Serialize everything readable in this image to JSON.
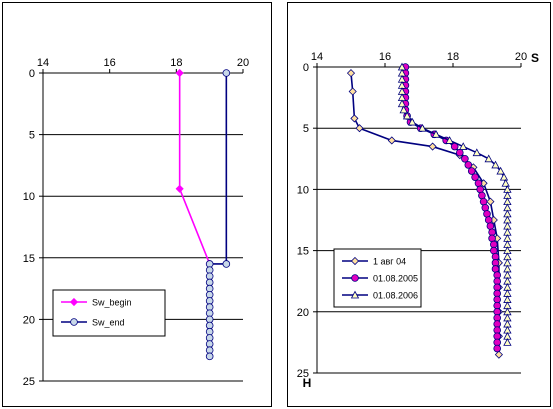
{
  "chart_data": [
    {
      "type": "line",
      "title": "",
      "xlabel": "",
      "ylabel": "",
      "xlim": [
        14,
        20
      ],
      "ylim": [
        0,
        25
      ],
      "y_inverted": true,
      "x_axis_position": "top",
      "x_ticks": [
        14,
        16,
        18,
        20
      ],
      "y_ticks": [
        0,
        5,
        10,
        15,
        20,
        25
      ],
      "grid": "horizontal",
      "legend_position": "bottom-left",
      "series": [
        {
          "name": "Sw_begin",
          "color": "#ff00ff",
          "marker": "diamond",
          "marker_fill": "#ff00ff",
          "points": [
            [
              18.1,
              0
            ],
            [
              18.1,
              9.4
            ],
            [
              19.0,
              15.5
            ]
          ]
        },
        {
          "name": "Sw_end",
          "color": "#000080",
          "marker": "circle",
          "marker_fill": "#c8d8e8",
          "points": [
            [
              19.5,
              0
            ],
            [
              19.5,
              15.5
            ],
            [
              19.0,
              15.5
            ],
            [
              19.0,
              16.0
            ],
            [
              19.0,
              16.5
            ],
            [
              19.0,
              17.0
            ],
            [
              19.0,
              17.5
            ],
            [
              19.0,
              18.0
            ],
            [
              19.0,
              18.5
            ],
            [
              19.0,
              19.0
            ],
            [
              19.0,
              19.5
            ],
            [
              19.0,
              20.0
            ],
            [
              19.0,
              20.5
            ],
            [
              19.0,
              21.0
            ],
            [
              19.0,
              21.5
            ],
            [
              19.0,
              22.0
            ],
            [
              19.0,
              22.5
            ],
            [
              19.0,
              23.0
            ]
          ]
        }
      ]
    },
    {
      "type": "line",
      "title": "",
      "xlabel": "S",
      "ylabel": "H",
      "xlim": [
        14,
        20
      ],
      "ylim": [
        0,
        25
      ],
      "y_inverted": true,
      "x_axis_position": "top",
      "x_ticks": [
        14,
        16,
        18,
        20
      ],
      "y_ticks": [
        0,
        5,
        10,
        15,
        20,
        25
      ],
      "grid": "horizontal",
      "legend_position": "bottom-left",
      "series": [
        {
          "name": "1 авг 04",
          "color": "#000080",
          "marker": "diamond",
          "marker_fill": "#ffe0a0",
          "points": [
            [
              15.0,
              0.5
            ],
            [
              15.05,
              2.0
            ],
            [
              15.1,
              4.2
            ],
            [
              15.25,
              5.0
            ],
            [
              16.2,
              6.0
            ],
            [
              17.4,
              6.5
            ],
            [
              18.2,
              7.2
            ],
            [
              18.6,
              8.2
            ],
            [
              18.9,
              9.5
            ],
            [
              19.1,
              11.0
            ],
            [
              19.2,
              12.5
            ],
            [
              19.3,
              14.0
            ],
            [
              19.35,
              16.0
            ],
            [
              19.35,
              18.0
            ],
            [
              19.35,
              20.0
            ],
            [
              19.35,
              22.0
            ],
            [
              19.35,
              23.5
            ]
          ]
        },
        {
          "name": "01.08.2005",
          "color": "#000080",
          "marker": "circle",
          "marker_fill": "#e000c0",
          "points": [
            [
              16.6,
              0.0
            ],
            [
              16.6,
              0.5
            ],
            [
              16.6,
              1.0
            ],
            [
              16.6,
              1.5
            ],
            [
              16.6,
              2.0
            ],
            [
              16.6,
              2.5
            ],
            [
              16.6,
              3.0
            ],
            [
              16.6,
              3.5
            ],
            [
              16.65,
              4.0
            ],
            [
              16.75,
              4.5
            ],
            [
              17.05,
              5.0
            ],
            [
              17.45,
              5.5
            ],
            [
              17.8,
              6.0
            ],
            [
              18.05,
              6.5
            ],
            [
              18.2,
              7.0
            ],
            [
              18.35,
              7.5
            ],
            [
              18.45,
              8.0
            ],
            [
              18.55,
              8.5
            ],
            [
              18.65,
              9.0
            ],
            [
              18.75,
              9.5
            ],
            [
              18.8,
              10.0
            ],
            [
              18.85,
              10.5
            ],
            [
              18.9,
              11.0
            ],
            [
              18.95,
              11.5
            ],
            [
              19.0,
              12.0
            ],
            [
              19.05,
              12.5
            ],
            [
              19.1,
              13.0
            ],
            [
              19.15,
              13.5
            ],
            [
              19.15,
              14.0
            ],
            [
              19.2,
              14.5
            ],
            [
              19.2,
              15.0
            ],
            [
              19.25,
              15.5
            ],
            [
              19.25,
              16.0
            ],
            [
              19.25,
              16.5
            ],
            [
              19.3,
              17.0
            ],
            [
              19.3,
              17.5
            ],
            [
              19.3,
              18.0
            ],
            [
              19.3,
              18.5
            ],
            [
              19.3,
              19.0
            ],
            [
              19.3,
              19.5
            ],
            [
              19.3,
              20.0
            ],
            [
              19.3,
              20.5
            ],
            [
              19.3,
              21.0
            ],
            [
              19.3,
              21.5
            ],
            [
              19.3,
              22.0
            ],
            [
              19.3,
              22.5
            ],
            [
              19.3,
              23.0
            ]
          ]
        },
        {
          "name": "01.08.2006",
          "color": "#000080",
          "marker": "triangle",
          "marker_fill": "#ffffc0",
          "points": [
            [
              16.5,
              0.0
            ],
            [
              16.5,
              0.5
            ],
            [
              16.5,
              1.0
            ],
            [
              16.5,
              1.5
            ],
            [
              16.5,
              2.0
            ],
            [
              16.5,
              2.5
            ],
            [
              16.5,
              3.0
            ],
            [
              16.55,
              3.5
            ],
            [
              16.65,
              4.0
            ],
            [
              16.8,
              4.5
            ],
            [
              17.1,
              5.0
            ],
            [
              17.5,
              5.5
            ],
            [
              17.9,
              6.0
            ],
            [
              18.3,
              6.5
            ],
            [
              18.7,
              7.0
            ],
            [
              19.05,
              7.5
            ],
            [
              19.25,
              8.0
            ],
            [
              19.4,
              8.5
            ],
            [
              19.5,
              9.0
            ],
            [
              19.55,
              9.5
            ],
            [
              19.6,
              10.0
            ],
            [
              19.6,
              10.5
            ],
            [
              19.6,
              11.0
            ],
            [
              19.6,
              11.5
            ],
            [
              19.6,
              12.0
            ],
            [
              19.6,
              12.5
            ],
            [
              19.6,
              13.0
            ],
            [
              19.6,
              13.5
            ],
            [
              19.6,
              14.0
            ],
            [
              19.6,
              14.5
            ],
            [
              19.6,
              15.0
            ],
            [
              19.6,
              15.5
            ],
            [
              19.6,
              16.0
            ],
            [
              19.6,
              16.5
            ],
            [
              19.6,
              17.0
            ],
            [
              19.6,
              17.5
            ],
            [
              19.6,
              18.0
            ],
            [
              19.6,
              18.5
            ],
            [
              19.6,
              19.0
            ],
            [
              19.6,
              19.5
            ],
            [
              19.6,
              20.0
            ],
            [
              19.6,
              20.5
            ],
            [
              19.6,
              21.0
            ],
            [
              19.6,
              21.5
            ],
            [
              19.6,
              22.0
            ],
            [
              19.6,
              22.5
            ]
          ]
        }
      ]
    }
  ]
}
